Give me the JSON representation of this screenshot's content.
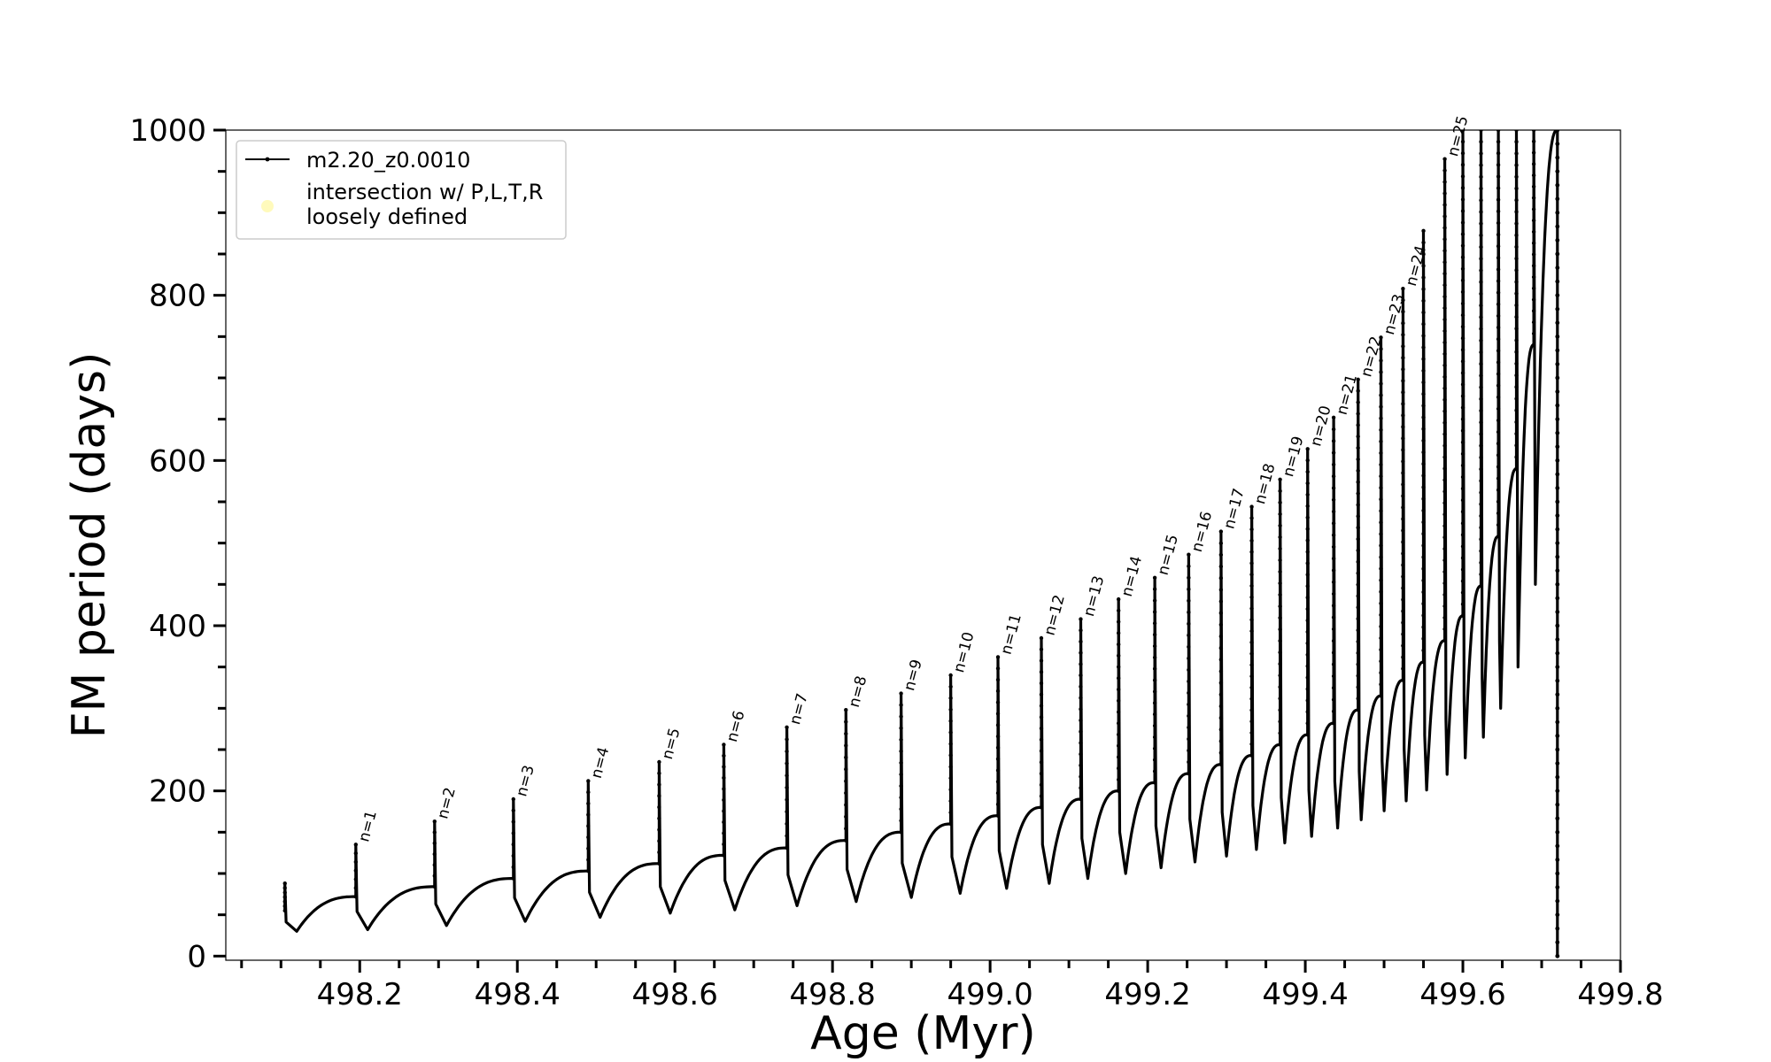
{
  "chart_data": {
    "type": "line",
    "title": "",
    "xlabel": "Age (Myr)",
    "ylabel": "FM period (days)",
    "xlim": [
      498.03,
      499.8
    ],
    "ylim": [
      -5,
      1000
    ],
    "x_ticks": [
      "498.2",
      "498.4",
      "498.6",
      "498.8",
      "499.0",
      "499.2",
      "499.4",
      "499.6",
      "499.8"
    ],
    "y_ticks": [
      "0",
      "200",
      "400",
      "600",
      "800",
      "1000"
    ],
    "legend_position": "top-left",
    "grid": false,
    "series": [
      {
        "name": "m2.20_z0.0010",
        "color": "#000000",
        "marker": "dot",
        "pulses": [
          {
            "t": 498.105,
            "base": 55,
            "spike": 88,
            "min": 30,
            "min_t": 498.12,
            "end": 72
          },
          {
            "t": 498.195,
            "base": 72,
            "spike": 135,
            "min": 32,
            "min_t": 498.21,
            "end": 84
          },
          {
            "t": 498.295,
            "base": 84,
            "spike": 163,
            "min": 37,
            "min_t": 498.31,
            "end": 94
          },
          {
            "t": 498.395,
            "base": 94,
            "spike": 190,
            "min": 42,
            "min_t": 498.41,
            "end": 103
          },
          {
            "t": 498.49,
            "base": 103,
            "spike": 212,
            "min": 47,
            "min_t": 498.505,
            "end": 112
          },
          {
            "t": 498.58,
            "base": 112,
            "spike": 235,
            "min": 52,
            "min_t": 498.594,
            "end": 122
          },
          {
            "t": 498.662,
            "base": 122,
            "spike": 256,
            "min": 56,
            "min_t": 498.676,
            "end": 131
          },
          {
            "t": 498.742,
            "base": 131,
            "spike": 277,
            "min": 61,
            "min_t": 498.755,
            "end": 140
          },
          {
            "t": 498.817,
            "base": 140,
            "spike": 298,
            "min": 66,
            "min_t": 498.83,
            "end": 150
          },
          {
            "t": 498.887,
            "base": 150,
            "spike": 318,
            "min": 71,
            "min_t": 498.9,
            "end": 160
          },
          {
            "t": 498.95,
            "base": 160,
            "spike": 340,
            "min": 76,
            "min_t": 498.962,
            "end": 170
          },
          {
            "t": 499.01,
            "base": 170,
            "spike": 362,
            "min": 82,
            "min_t": 499.021,
            "end": 180
          },
          {
            "t": 499.065,
            "base": 180,
            "spike": 385,
            "min": 88,
            "min_t": 499.075,
            "end": 190
          },
          {
            "t": 499.115,
            "base": 190,
            "spike": 408,
            "min": 94,
            "min_t": 499.124,
            "end": 200
          },
          {
            "t": 499.163,
            "base": 200,
            "spike": 432,
            "min": 100,
            "min_t": 499.172,
            "end": 210
          },
          {
            "t": 499.209,
            "base": 210,
            "spike": 458,
            "min": 107,
            "min_t": 499.217,
            "end": 221
          },
          {
            "t": 499.252,
            "base": 221,
            "spike": 486,
            "min": 114,
            "min_t": 499.26,
            "end": 232
          },
          {
            "t": 499.293,
            "base": 232,
            "spike": 514,
            "min": 121,
            "min_t": 499.3,
            "end": 243
          },
          {
            "t": 499.332,
            "base": 243,
            "spike": 544,
            "min": 129,
            "min_t": 499.338,
            "end": 256
          },
          {
            "t": 499.368,
            "base": 256,
            "spike": 577,
            "min": 137,
            "min_t": 499.374,
            "end": 268
          },
          {
            "t": 499.403,
            "base": 268,
            "spike": 614,
            "min": 145,
            "min_t": 499.408,
            "end": 282
          },
          {
            "t": 499.436,
            "base": 282,
            "spike": 652,
            "min": 155,
            "min_t": 499.441,
            "end": 298
          },
          {
            "t": 499.467,
            "base": 298,
            "spike": 698,
            "min": 165,
            "min_t": 499.471,
            "end": 315
          },
          {
            "t": 499.496,
            "base": 315,
            "spike": 749,
            "min": 176,
            "min_t": 499.5,
            "end": 334
          },
          {
            "t": 499.524,
            "base": 334,
            "spike": 808,
            "min": 188,
            "min_t": 499.528,
            "end": 356
          },
          {
            "t": 499.55,
            "base": 356,
            "spike": 878,
            "min": 201,
            "min_t": 499.554,
            "end": 382
          },
          {
            "t": 499.577,
            "base": 382,
            "spike": 965,
            "min": 220,
            "min_t": 499.58,
            "end": 412
          },
          {
            "t": 499.6,
            "base": 412,
            "spike": 1000,
            "min": 240,
            "min_t": 499.603,
            "end": 448
          },
          {
            "t": 499.623,
            "base": 448,
            "spike": 1000,
            "min": 265,
            "min_t": 499.626,
            "end": 508
          },
          {
            "t": 499.645,
            "base": 508,
            "spike": 1000,
            "min": 300,
            "min_t": 499.648,
            "end": 590
          },
          {
            "t": 499.668,
            "base": 590,
            "spike": 1000,
            "min": 350,
            "min_t": 499.67,
            "end": 740
          },
          {
            "t": 499.69,
            "base": 740,
            "spike": 1000,
            "min": 450,
            "min_t": 499.692,
            "end": 1000
          }
        ],
        "final_drop": {
          "t": 499.72,
          "top": 1000,
          "bottom": 0
        }
      },
      {
        "name": "intersection w/ P,L,T,R\nloosely defined",
        "color": "#fff9b0",
        "marker": "circle",
        "points": []
      }
    ],
    "annotations": [
      {
        "text": "n=1",
        "x": 498.195,
        "y": 135
      },
      {
        "text": "n=2",
        "x": 498.295,
        "y": 163
      },
      {
        "text": "n=3",
        "x": 498.395,
        "y": 190
      },
      {
        "text": "n=4",
        "x": 498.49,
        "y": 212
      },
      {
        "text": "n=5",
        "x": 498.58,
        "y": 235
      },
      {
        "text": "n=6",
        "x": 498.662,
        "y": 256
      },
      {
        "text": "n=7",
        "x": 498.742,
        "y": 277
      },
      {
        "text": "n=8",
        "x": 498.817,
        "y": 298
      },
      {
        "text": "n=9",
        "x": 498.887,
        "y": 318
      },
      {
        "text": "n=10",
        "x": 498.95,
        "y": 340
      },
      {
        "text": "n=11",
        "x": 499.01,
        "y": 362
      },
      {
        "text": "n=12",
        "x": 499.065,
        "y": 385
      },
      {
        "text": "n=13",
        "x": 499.115,
        "y": 408
      },
      {
        "text": "n=14",
        "x": 499.163,
        "y": 432
      },
      {
        "text": "n=15",
        "x": 499.209,
        "y": 458
      },
      {
        "text": "n=16",
        "x": 499.252,
        "y": 486
      },
      {
        "text": "n=17",
        "x": 499.293,
        "y": 514
      },
      {
        "text": "n=18",
        "x": 499.332,
        "y": 544
      },
      {
        "text": "n=19",
        "x": 499.368,
        "y": 577
      },
      {
        "text": "n=20",
        "x": 499.403,
        "y": 614
      },
      {
        "text": "n=21",
        "x": 499.436,
        "y": 652
      },
      {
        "text": "n=22",
        "x": 499.467,
        "y": 698
      },
      {
        "text": "n=23",
        "x": 499.496,
        "y": 749
      },
      {
        "text": "n=24",
        "x": 499.524,
        "y": 808
      },
      {
        "text": "n=25",
        "x": 499.577,
        "y": 965
      }
    ]
  }
}
